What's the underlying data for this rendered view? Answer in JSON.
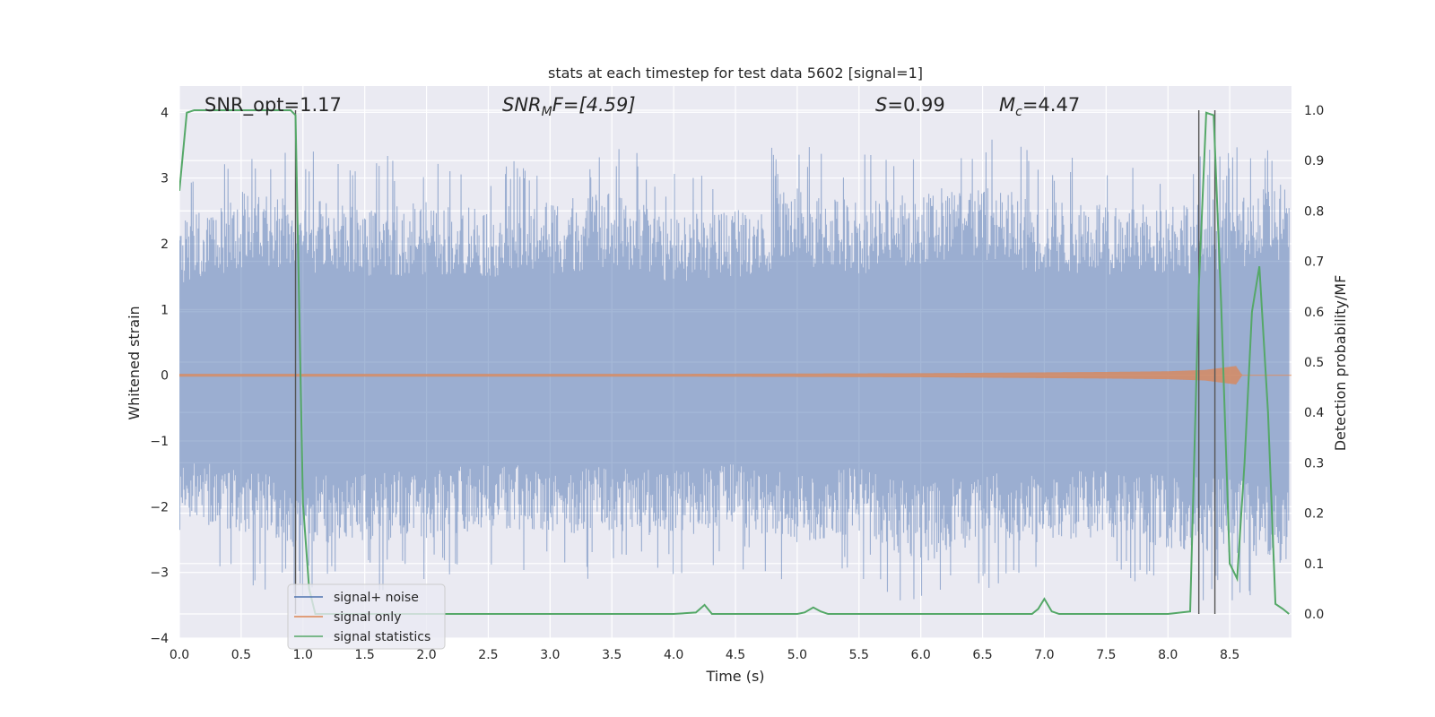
{
  "chart_data": {
    "type": "line",
    "title": "stats at each timestep for test data 5602 [signal=1]",
    "xlabel": "Time (s)",
    "ylabel": "Whitened strain",
    "y2label": "Detection probability/MF",
    "xlim": [
      0.0,
      9.0
    ],
    "ylim": [
      -4.0,
      4.4
    ],
    "y2lim": [
      -0.048,
      1.048
    ],
    "x_ticks": [
      0.0,
      0.5,
      1.0,
      1.5,
      2.0,
      2.5,
      3.0,
      3.5,
      4.0,
      4.5,
      5.0,
      5.5,
      6.0,
      6.5,
      7.0,
      7.5,
      8.0,
      8.5
    ],
    "x_tick_labels": [
      "0.0",
      "0.5",
      "1.0",
      "1.5",
      "2.0",
      "2.5",
      "3.0",
      "3.5",
      "4.0",
      "4.5",
      "5.0",
      "5.5",
      "6.0",
      "6.5",
      "7.0",
      "7.5",
      "8.0",
      "8.5"
    ],
    "y_ticks": [
      4,
      3,
      2,
      1,
      0,
      -1,
      -2,
      -3,
      -4
    ],
    "y_tick_labels": [
      "4",
      "3",
      "2",
      "1",
      "0",
      "−1",
      "−2",
      "−3",
      "−4"
    ],
    "y2_ticks": [
      1.0,
      0.9,
      0.8,
      0.7,
      0.6,
      0.5,
      0.4,
      0.3,
      0.2,
      0.1,
      0.0
    ],
    "y2_tick_labels": [
      "1.0",
      "0.9",
      "0.8",
      "0.7",
      "0.6",
      "0.5",
      "0.4",
      "0.3",
      "0.2",
      "0.1",
      "0.0"
    ],
    "grid": true,
    "legend_placement": "lower-left",
    "annotations": {
      "snr_opt": "SNR_opt=1.17",
      "snr_mf_base": "SNR",
      "snr_mf_sub": "M",
      "snr_mf_rest": "F=[4.59]",
      "s_var": "S",
      "s_rest": "=0.99",
      "mc_base": "M",
      "mc_sub": "c",
      "mc_rest": "=4.47"
    },
    "series": [
      {
        "name": "signal+ noise",
        "color": "#4c72b0",
        "axis": "left",
        "envelope": {
          "x": [
            0.0,
            0.5,
            1.0,
            1.5,
            2.0,
            2.5,
            3.0,
            3.5,
            4.0,
            4.5,
            5.0,
            5.5,
            6.0,
            6.5,
            7.0,
            7.5,
            8.0,
            8.5,
            8.98
          ],
          "upper": [
            3.0,
            3.6,
            3.5,
            3.3,
            3.4,
            3.3,
            3.4,
            3.6,
            3.1,
            3.3,
            3.7,
            3.4,
            3.6,
            3.8,
            3.4,
            3.4,
            3.4,
            3.5,
            3.8
          ],
          "lower": [
            -2.7,
            -3.2,
            -3.4,
            -3.3,
            -3.2,
            -3.0,
            -3.1,
            -3.1,
            -3.2,
            -3.0,
            -3.3,
            -3.1,
            -3.7,
            -3.3,
            -3.3,
            -3.2,
            -3.4,
            -3.5,
            -3.8
          ]
        }
      },
      {
        "name": "signal only",
        "color": "#dd8452",
        "axis": "left",
        "envelope": {
          "x": [
            0.0,
            4.0,
            6.0,
            7.5,
            8.0,
            8.3,
            8.55,
            8.6,
            9.0
          ],
          "amplitude": [
            0.02,
            0.02,
            0.03,
            0.05,
            0.06,
            0.08,
            0.14,
            0.0,
            0.0
          ]
        }
      },
      {
        "name": "signal statistics",
        "color": "#55a868",
        "axis": "right",
        "x": [
          0.0,
          0.06,
          0.12,
          0.5,
          0.9,
          0.94,
          1.0,
          1.05,
          1.1,
          2.0,
          3.0,
          4.0,
          4.18,
          4.25,
          4.31,
          5.0,
          5.06,
          5.13,
          5.19,
          5.25,
          6.0,
          6.9,
          6.95,
          7.0,
          7.06,
          7.12,
          8.0,
          8.18,
          8.25,
          8.31,
          8.37,
          8.43,
          8.5,
          8.56,
          8.62,
          8.68,
          8.74,
          8.81,
          8.87,
          8.93,
          8.98
        ],
        "values": [
          0.84,
          0.995,
          1.0,
          1.0,
          1.0,
          0.99,
          0.22,
          0.05,
          0.0,
          0.0,
          0.0,
          0.0,
          0.003,
          0.018,
          0.0,
          0.0,
          0.003,
          0.013,
          0.005,
          0.0,
          0.0,
          0.0,
          0.01,
          0.03,
          0.005,
          0.0,
          0.0,
          0.005,
          0.65,
          0.995,
          0.99,
          0.62,
          0.1,
          0.07,
          0.3,
          0.6,
          0.69,
          0.4,
          0.02,
          0.01,
          0.0
        ]
      }
    ],
    "vertical_lines": [
      0.94,
      8.25,
      8.38
    ]
  }
}
